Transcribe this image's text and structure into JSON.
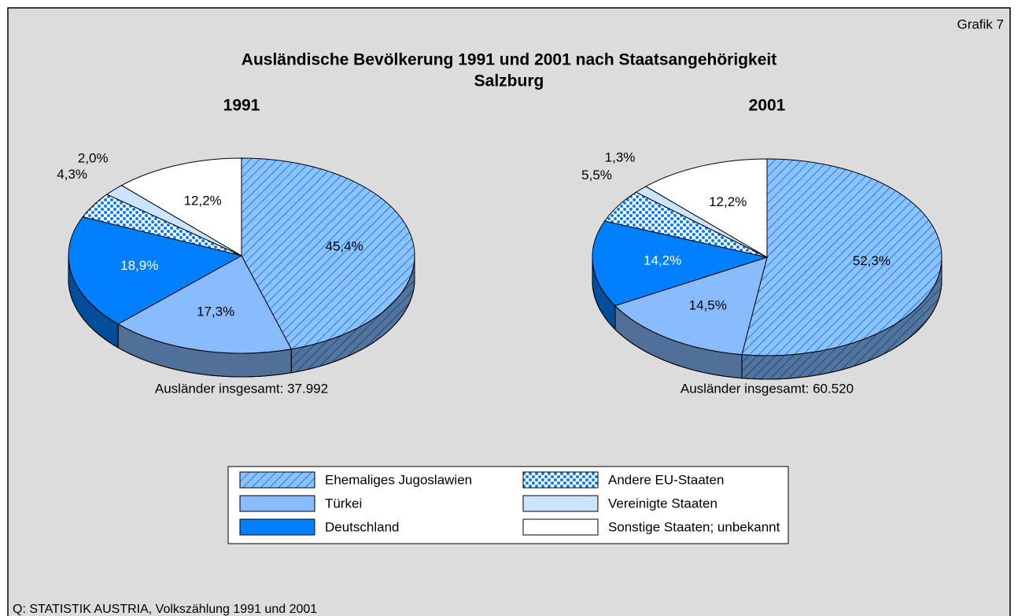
{
  "header": {
    "label": "Grafik 7",
    "title": "Ausländische Bevölkerung 1991 und 2001 nach Staatsangehörigkeit",
    "subtitle": "Salzburg"
  },
  "chart_data": [
    {
      "type": "pie",
      "title": "1991",
      "categories": [
        "Ehemaliges Jugoslawien",
        "Türkei",
        "Deutschland",
        "Andere EU-Staaten",
        "Vereinigte Staaten",
        "Sonstige Staaten; unbekannt"
      ],
      "values": [
        45.4,
        17.3,
        18.9,
        4.3,
        2.0,
        12.2
      ],
      "value_labels": [
        "45,4%",
        "17,3%",
        "18,9%",
        "4,3%",
        "2,0%",
        "12,2%"
      ],
      "colors": [
        "#6fb1ff",
        "#88bbff",
        "#0080ff",
        "#0080ff",
        "#cce4ff",
        "#ffffff"
      ],
      "patterns": [
        "hatch",
        "solid",
        "solid",
        "dots",
        "solid",
        "solid"
      ],
      "annotation": "Ausländer insgesamt: 37.992"
    },
    {
      "type": "pie",
      "title": "2001",
      "categories": [
        "Ehemaliges Jugoslawien",
        "Türkei",
        "Deutschland",
        "Andere EU-Staaten",
        "Vereinigte Staaten",
        "Sonstige Staaten; unbekannt"
      ],
      "values": [
        52.3,
        14.5,
        14.2,
        5.5,
        1.3,
        12.2
      ],
      "value_labels": [
        "52,3%",
        "14,5%",
        "14,2%",
        "5,5%",
        "1,3%",
        "12,2%"
      ],
      "colors": [
        "#6fb1ff",
        "#88bbff",
        "#0080ff",
        "#0080ff",
        "#cce4ff",
        "#ffffff"
      ],
      "patterns": [
        "hatch",
        "solid",
        "solid",
        "dots",
        "solid",
        "solid"
      ],
      "annotation": "Ausländer insgesamt: 60.520"
    }
  ],
  "source": "Q: STATISTIK AUSTRIA, Volkszählung 1991 und 2001"
}
